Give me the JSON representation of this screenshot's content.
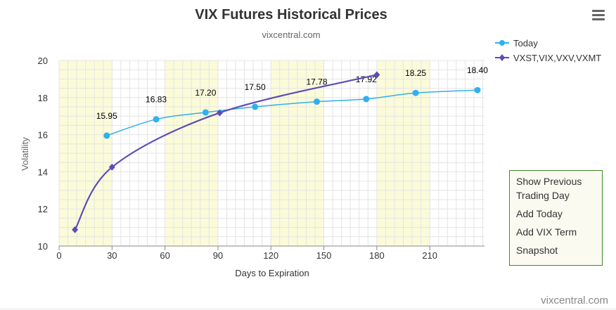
{
  "toolbar": {
    "menu_icon": "hamburger-menu-icon"
  },
  "chart_data": {
    "type": "line",
    "title": "VIX Futures Historical Prices",
    "subtitle": "vixcentral.com",
    "xlabel": "Days to Expiration",
    "ylabel": "Volatility",
    "xlim": [
      0,
      241
    ],
    "ylim": [
      10,
      20
    ],
    "x_ticks": [
      0,
      30,
      60,
      90,
      120,
      150,
      180,
      210
    ],
    "y_ticks": [
      10,
      12,
      14,
      16,
      18,
      20
    ],
    "grid": true,
    "highlight_bands": [
      [
        0,
        30
      ],
      [
        60,
        90
      ],
      [
        120,
        150
      ],
      [
        180,
        210
      ]
    ],
    "legend": "top-right",
    "series": [
      {
        "name": "Today",
        "color": "#2fb0ef",
        "marker": "circle",
        "x": [
          27,
          55,
          83,
          111,
          146,
          174,
          202,
          237
        ],
        "values": [
          15.95,
          16.83,
          17.2,
          17.5,
          17.78,
          17.92,
          18.25,
          18.4
        ],
        "labels": [
          "15.95",
          "16.83",
          "17.20",
          "17.50",
          "17.78",
          "17.92",
          "18.25",
          "18.40"
        ]
      },
      {
        "name": "VXST,VIX,VXV,VXMT",
        "color": "#5b4db7",
        "marker": "diamond",
        "x": [
          9,
          30,
          91,
          180
        ],
        "values": [
          10.88,
          14.25,
          17.18,
          19.23
        ]
      }
    ]
  },
  "side_menu": {
    "items": [
      "Show Previous Trading Day",
      "Add Today",
      "Add VIX Term",
      "Snapshot"
    ]
  },
  "footer": {
    "watermark": "vixcentral.com"
  }
}
